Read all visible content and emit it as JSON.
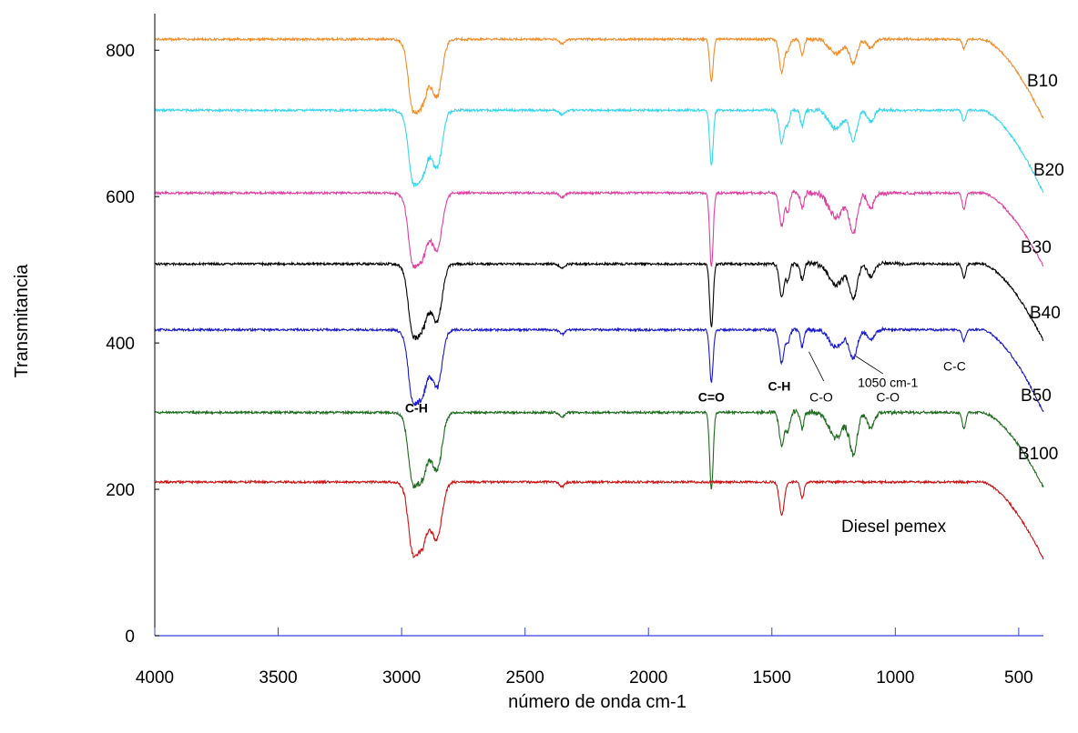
{
  "chart_data": {
    "type": "line",
    "title": "",
    "xlabel": "número de onda cm-1",
    "ylabel": "Transmitancia",
    "xlim": [
      4000,
      400
    ],
    "ylim": [
      0,
      850
    ],
    "x_ticks": [
      4000,
      3500,
      3000,
      2500,
      2000,
      1500,
      1000,
      500
    ],
    "y_ticks": [
      0,
      200,
      400,
      600,
      800
    ],
    "grid": false,
    "legend": "labels at right end of each curve",
    "series": [
      {
        "name": "B10",
        "color": "#f28c28",
        "baseline": 815,
        "scale": 0.78,
        "end": 706,
        "tail_dip": 0
      },
      {
        "name": "B20",
        "color": "#38d6ee",
        "baseline": 718,
        "scale": 1.0,
        "end": 605,
        "tail_dip": 0
      },
      {
        "name": "B30",
        "color": "#e040a0",
        "baseline": 605,
        "scale": 1.35,
        "end": 505,
        "tail_dip": 30
      },
      {
        "name": "B40",
        "color": "#000000",
        "baseline": 508,
        "scale": 1.15,
        "end": 403,
        "tail_dip": 25
      },
      {
        "name": "B50",
        "color": "#1a1acc",
        "baseline": 418,
        "scale": 0.95,
        "end": 305,
        "tail_dip": 12
      },
      {
        "name": "B100",
        "color": "#1e6b1e",
        "baseline": 305,
        "scale": 1.4,
        "end": 203,
        "tail_dip": 40
      },
      {
        "name": "Diesel pemex",
        "color": "#cc1111",
        "baseline": 210,
        "scale": 0.0,
        "end": 105,
        "tail_dip": 0
      }
    ],
    "annotations": [
      {
        "text": "C-H",
        "x": 2940,
        "y": 305,
        "bold": true
      },
      {
        "text": "C=O",
        "x": 1745,
        "y": 320,
        "bold": true
      },
      {
        "text": "C-H",
        "x": 1470,
        "y": 335,
        "bold": true
      },
      {
        "text": "C-O",
        "x": 1300,
        "y": 320,
        "bold": false
      },
      {
        "text": "1050 cm-1",
        "x": 1030,
        "y": 340,
        "bold": false
      },
      {
        "text": "C-O",
        "x": 1030,
        "y": 320,
        "bold": false
      },
      {
        "text": "C-C",
        "x": 760,
        "y": 362,
        "bold": false
      }
    ]
  }
}
